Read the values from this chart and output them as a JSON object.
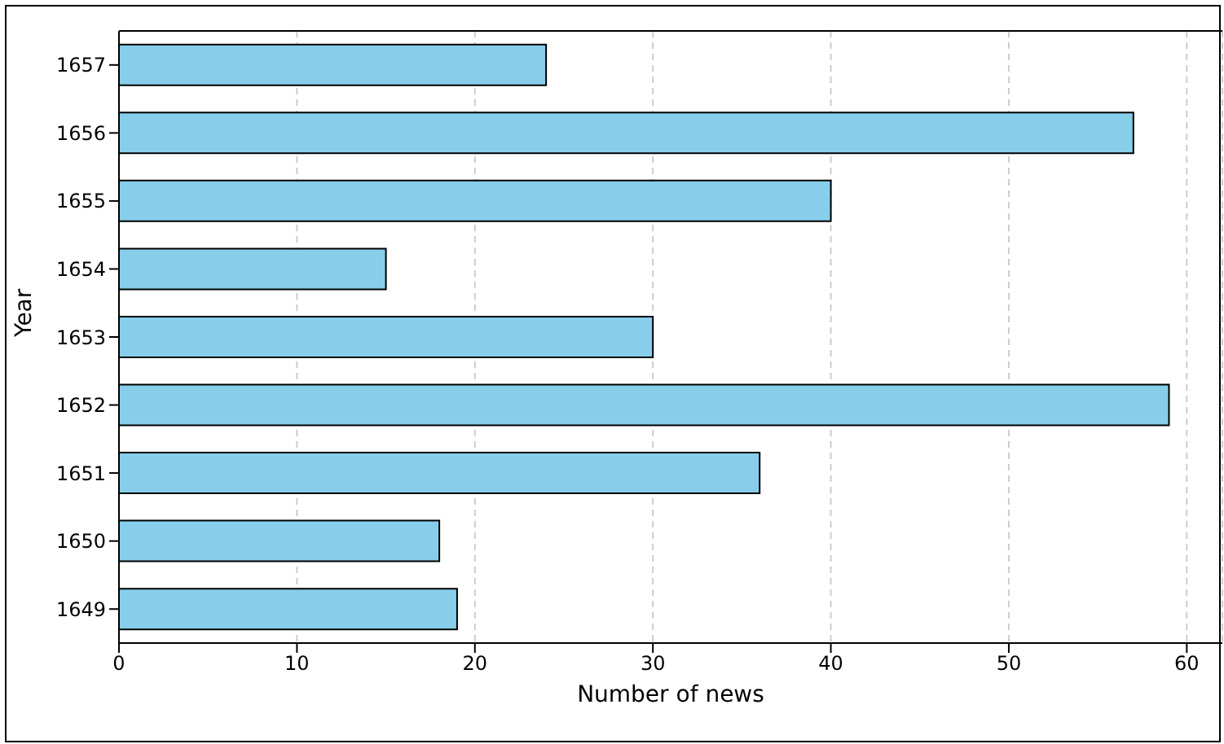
{
  "chart_data": {
    "type": "bar",
    "orientation": "horizontal",
    "xlabel": "Number of news",
    "ylabel": "Year",
    "categories": [
      "1657",
      "1656",
      "1655",
      "1654",
      "1653",
      "1652",
      "1651",
      "1650",
      "1649"
    ],
    "values": [
      24,
      57,
      40,
      15,
      30,
      59,
      36,
      18,
      19
    ],
    "color": "#87ceeb",
    "xlim": [
      0,
      62
    ],
    "xticks": [
      0,
      10,
      20,
      30,
      40,
      50,
      60
    ],
    "grid": "x"
  }
}
